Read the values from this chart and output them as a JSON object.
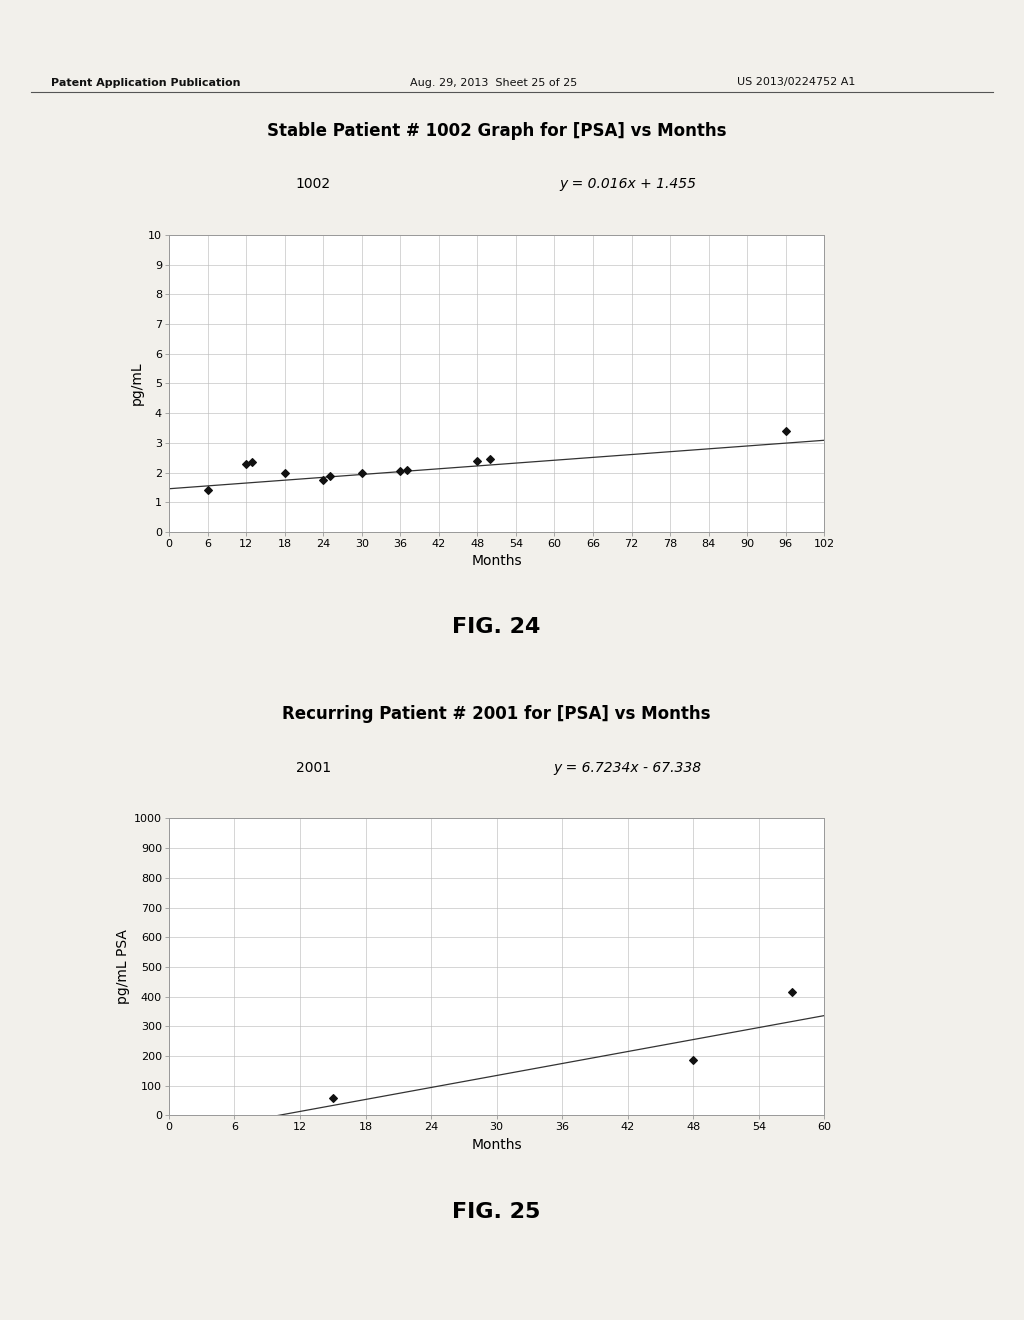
{
  "fig1": {
    "title": "Stable Patient # 1002 Graph for [PSA] vs Months",
    "label_id": "1002",
    "equation": "y = 0.016x + 1.455",
    "xlabel": "Months",
    "ylabel": "pg/mL",
    "xlim": [
      0,
      102
    ],
    "ylim": [
      0,
      10
    ],
    "xticks": [
      0,
      6,
      12,
      18,
      24,
      30,
      36,
      42,
      48,
      54,
      60,
      66,
      72,
      78,
      84,
      90,
      96,
      102
    ],
    "yticks": [
      0,
      1,
      2,
      3,
      4,
      5,
      6,
      7,
      8,
      9,
      10
    ],
    "data_x": [
      6,
      12,
      13,
      18,
      24,
      25,
      30,
      36,
      37,
      48,
      50,
      96
    ],
    "data_y": [
      1.4,
      2.3,
      2.35,
      2.0,
      1.75,
      1.9,
      2.0,
      2.05,
      2.1,
      2.4,
      2.45,
      3.4
    ],
    "slope": 0.016,
    "intercept": 1.455,
    "fig_label": "FIG. 24"
  },
  "fig2": {
    "title": "Recurring Patient # 2001 for [PSA] vs Months",
    "label_id": "2001",
    "equation": "y = 6.7234x - 67.338",
    "xlabel": "Months",
    "ylabel": "pg/mL PSA",
    "xlim": [
      0,
      60
    ],
    "ylim": [
      0,
      1000
    ],
    "xticks": [
      0,
      6,
      12,
      18,
      24,
      30,
      36,
      42,
      48,
      54,
      60
    ],
    "yticks": [
      0,
      100,
      200,
      300,
      400,
      500,
      600,
      700,
      800,
      900,
      1000
    ],
    "data_x": [
      15,
      48,
      57
    ],
    "data_y": [
      60,
      185,
      415
    ],
    "slope": 6.7234,
    "intercept": -67.338,
    "fig_label": "FIG. 25"
  },
  "header_left": "Patent Application Publication",
  "header_mid": "Aug. 29, 2013  Sheet 25 of 25",
  "header_right": "US 2013/0224752 A1",
  "bg_color": "#f2f0eb",
  "plot_bg": "#ffffff",
  "grid_color": "#bbbbbb",
  "line_color": "#333333",
  "marker_color": "#111111",
  "title_fontsize": 12,
  "axis_label_fontsize": 10,
  "tick_fontsize": 8,
  "header_fontsize": 8,
  "eq_fontsize": 10,
  "id_fontsize": 10,
  "fig_label_fontsize": 16
}
